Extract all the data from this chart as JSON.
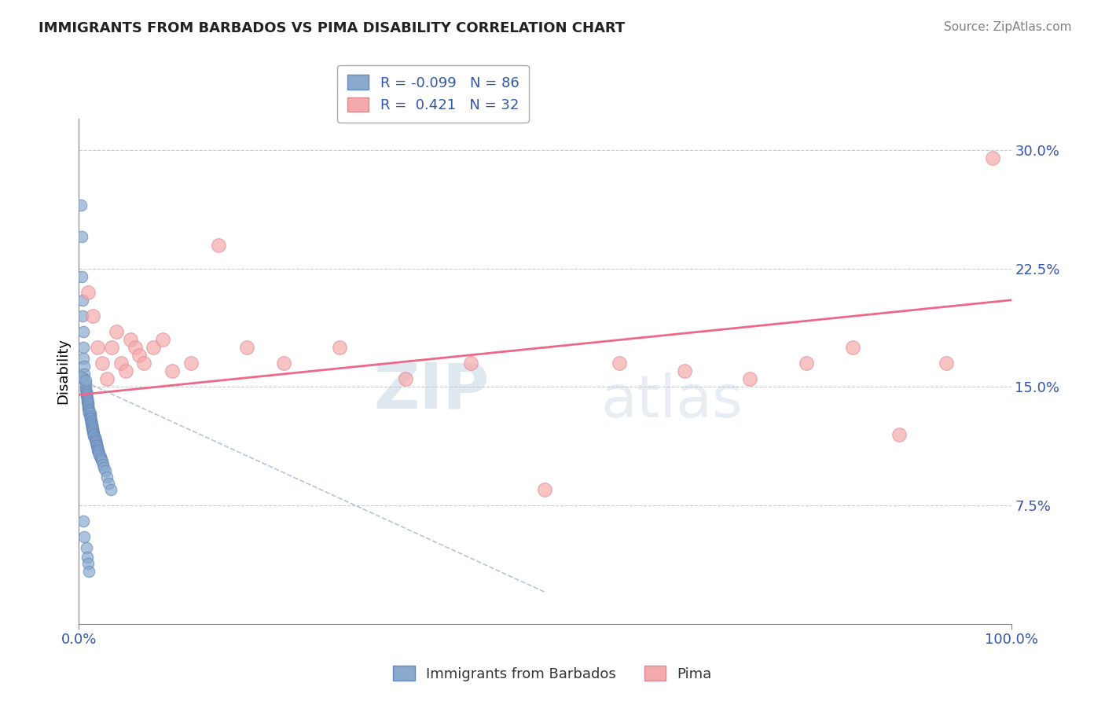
{
  "title": "IMMIGRANTS FROM BARBADOS VS PIMA DISABILITY CORRELATION CHART",
  "source_text": "Source: ZipAtlas.com",
  "ylabel": "Disability",
  "legend_labels": [
    "Immigrants from Barbados",
    "Pima"
  ],
  "blue_R": -0.099,
  "blue_N": 86,
  "pink_R": 0.421,
  "pink_N": 32,
  "blue_color": "#89AACC",
  "pink_color": "#F4AAAA",
  "blue_edge": "#6688BB",
  "pink_edge": "#DD8899",
  "trend_blue_color": "#99AACC",
  "trend_pink_color": "#EE6688",
  "watermark_zip": "ZIP",
  "watermark_atlas": "atlas",
  "xlim": [
    0.0,
    1.0
  ],
  "ylim": [
    0.0,
    0.32
  ],
  "yticks": [
    0.075,
    0.15,
    0.225,
    0.3
  ],
  "ytick_labels": [
    "7.5%",
    "15.0%",
    "22.5%",
    "30.0%"
  ],
  "grid_color": "#CCCCCC",
  "background_color": "#FFFFFF",
  "blue_x": [
    0.002,
    0.003,
    0.003,
    0.004,
    0.004,
    0.005,
    0.005,
    0.005,
    0.006,
    0.006,
    0.006,
    0.007,
    0.007,
    0.007,
    0.008,
    0.008,
    0.008,
    0.008,
    0.009,
    0.009,
    0.009,
    0.009,
    0.01,
    0.01,
    0.01,
    0.01,
    0.01,
    0.011,
    0.011,
    0.011,
    0.011,
    0.012,
    0.012,
    0.012,
    0.012,
    0.012,
    0.013,
    0.013,
    0.013,
    0.013,
    0.014,
    0.014,
    0.014,
    0.014,
    0.015,
    0.015,
    0.015,
    0.015,
    0.016,
    0.016,
    0.016,
    0.016,
    0.017,
    0.017,
    0.017,
    0.018,
    0.018,
    0.018,
    0.019,
    0.019,
    0.019,
    0.02,
    0.02,
    0.02,
    0.021,
    0.021,
    0.022,
    0.022,
    0.023,
    0.023,
    0.024,
    0.025,
    0.026,
    0.027,
    0.028,
    0.03,
    0.032,
    0.034,
    0.003,
    0.007,
    0.005,
    0.006,
    0.008,
    0.009,
    0.01,
    0.011
  ],
  "blue_y": [
    0.265,
    0.245,
    0.22,
    0.205,
    0.195,
    0.185,
    0.175,
    0.168,
    0.163,
    0.158,
    0.155,
    0.152,
    0.15,
    0.148,
    0.147,
    0.146,
    0.145,
    0.144,
    0.143,
    0.142,
    0.141,
    0.14,
    0.14,
    0.139,
    0.138,
    0.137,
    0.136,
    0.135,
    0.135,
    0.134,
    0.133,
    0.133,
    0.132,
    0.131,
    0.13,
    0.13,
    0.129,
    0.128,
    0.128,
    0.127,
    0.126,
    0.126,
    0.125,
    0.124,
    0.124,
    0.123,
    0.122,
    0.122,
    0.121,
    0.12,
    0.12,
    0.119,
    0.118,
    0.118,
    0.117,
    0.116,
    0.116,
    0.115,
    0.114,
    0.113,
    0.113,
    0.112,
    0.111,
    0.11,
    0.11,
    0.109,
    0.108,
    0.107,
    0.106,
    0.105,
    0.104,
    0.103,
    0.101,
    0.099,
    0.097,
    0.093,
    0.089,
    0.085,
    0.156,
    0.154,
    0.065,
    0.055,
    0.048,
    0.042,
    0.038,
    0.033
  ],
  "pink_x": [
    0.01,
    0.015,
    0.02,
    0.025,
    0.03,
    0.035,
    0.04,
    0.045,
    0.05,
    0.055,
    0.06,
    0.065,
    0.07,
    0.08,
    0.09,
    0.1,
    0.12,
    0.15,
    0.18,
    0.22,
    0.28,
    0.35,
    0.42,
    0.5,
    0.58,
    0.65,
    0.72,
    0.78,
    0.83,
    0.88,
    0.93,
    0.98
  ],
  "pink_y": [
    0.21,
    0.195,
    0.175,
    0.165,
    0.155,
    0.175,
    0.185,
    0.165,
    0.16,
    0.18,
    0.175,
    0.17,
    0.165,
    0.175,
    0.18,
    0.16,
    0.165,
    0.24,
    0.175,
    0.165,
    0.175,
    0.155,
    0.165,
    0.085,
    0.165,
    0.16,
    0.155,
    0.165,
    0.175,
    0.12,
    0.165,
    0.295
  ],
  "trend_pink_x0": 0.0,
  "trend_pink_y0": 0.145,
  "trend_pink_x1": 1.0,
  "trend_pink_y1": 0.205,
  "trend_blue_x0": 0.0,
  "trend_blue_y0": 0.155,
  "trend_blue_x1": 0.5,
  "trend_blue_y1": 0.02
}
